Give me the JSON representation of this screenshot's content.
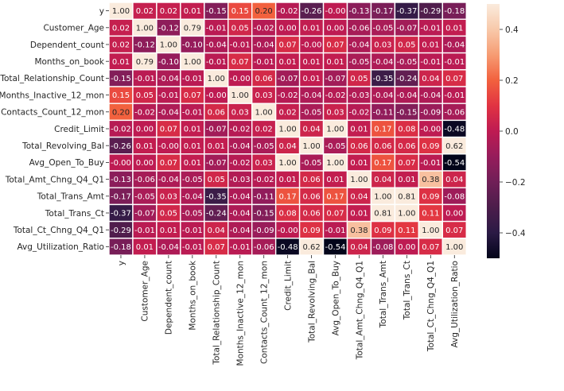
{
  "chart_data": {
    "type": "heatmap",
    "title": "",
    "xlabel": "",
    "ylabel": "",
    "rows": [
      "y",
      "Customer_Age",
      "Dependent_count",
      "Months_on_book",
      "Total_Relationship_Count",
      "Months_Inactive_12_mon",
      "Contacts_Count_12_mon",
      "Credit_Limit",
      "Total_Revolving_Bal",
      "Avg_Open_To_Buy",
      "Total_Amt_Chng_Q4_Q1",
      "Total_Trans_Amt",
      "Total_Trans_Ct",
      "Total_Ct_Chng_Q4_Q1",
      "Avg_Utilization_Ratio"
    ],
    "columns": [
      "y",
      "Customer_Age",
      "Dependent_count",
      "Months_on_book",
      "Total_Relationship_Count",
      "Months_Inactive_12_mon",
      "Contacts_Count_12_mon",
      "Credit_Limit",
      "Total_Revolving_Bal",
      "Avg_Open_To_Buy",
      "Total_Amt_Chng_Q4_Q1",
      "Total_Trans_Amt",
      "Total_Trans_Ct",
      "Total_Ct_Chng_Q4_Q1",
      "Avg_Utilization_Ratio"
    ],
    "values": [
      [
        1.0,
        0.02,
        0.02,
        0.01,
        -0.15,
        0.15,
        0.2,
        -0.02,
        -0.26,
        -0.0,
        -0.13,
        -0.17,
        -0.37,
        -0.29,
        -0.18
      ],
      [
        0.02,
        1.0,
        -0.12,
        0.79,
        -0.01,
        0.05,
        -0.02,
        0.0,
        0.01,
        0.0,
        -0.06,
        -0.05,
        -0.07,
        -0.01,
        0.01
      ],
      [
        0.02,
        -0.12,
        1.0,
        -0.1,
        -0.04,
        -0.01,
        -0.04,
        0.07,
        -0.0,
        0.07,
        -0.04,
        0.03,
        0.05,
        0.01,
        -0.04
      ],
      [
        0.01,
        0.79,
        -0.1,
        1.0,
        -0.01,
        0.07,
        -0.01,
        0.01,
        0.01,
        0.01,
        -0.05,
        -0.04,
        -0.05,
        -0.01,
        -0.01
      ],
      [
        -0.15,
        -0.01,
        -0.04,
        -0.01,
        1.0,
        -0.0,
        0.06,
        -0.07,
        0.01,
        -0.07,
        0.05,
        -0.35,
        -0.24,
        0.04,
        0.07
      ],
      [
        0.15,
        0.05,
        -0.01,
        0.07,
        -0.0,
        1.0,
        0.03,
        -0.02,
        -0.04,
        -0.02,
        -0.03,
        -0.04,
        -0.04,
        -0.04,
        -0.01
      ],
      [
        0.2,
        -0.02,
        -0.04,
        -0.01,
        0.06,
        0.03,
        1.0,
        0.02,
        -0.05,
        0.03,
        -0.02,
        -0.11,
        -0.15,
        -0.09,
        -0.06
      ],
      [
        -0.02,
        0.0,
        0.07,
        0.01,
        -0.07,
        -0.02,
        0.02,
        1.0,
        0.04,
        1.0,
        0.01,
        0.17,
        0.08,
        -0.0,
        -0.48
      ],
      [
        -0.26,
        0.01,
        -0.0,
        0.01,
        0.01,
        -0.04,
        -0.05,
        0.04,
        1.0,
        -0.05,
        0.06,
        0.06,
        0.06,
        0.09,
        0.62
      ],
      [
        -0.0,
        0.0,
        0.07,
        0.01,
        -0.07,
        -0.02,
        0.03,
        1.0,
        -0.05,
        1.0,
        0.01,
        0.17,
        0.07,
        -0.01,
        -0.54
      ],
      [
        -0.13,
        -0.06,
        -0.04,
        -0.05,
        0.05,
        -0.03,
        -0.02,
        0.01,
        0.06,
        0.01,
        1.0,
        0.04,
        0.01,
        0.38,
        0.04
      ],
      [
        -0.17,
        -0.05,
        0.03,
        -0.04,
        -0.35,
        -0.04,
        -0.11,
        0.17,
        0.06,
        0.17,
        0.04,
        1.0,
        0.81,
        0.09,
        -0.08
      ],
      [
        -0.37,
        -0.07,
        0.05,
        -0.05,
        -0.24,
        -0.04,
        -0.15,
        0.08,
        0.06,
        0.07,
        0.01,
        0.81,
        1.0,
        0.11,
        0.0
      ],
      [
        -0.29,
        -0.01,
        0.01,
        -0.01,
        0.04,
        -0.04,
        -0.09,
        -0.0,
        0.09,
        -0.01,
        0.38,
        0.09,
        0.11,
        1.0,
        0.07
      ],
      [
        -0.18,
        0.01,
        -0.04,
        -0.01,
        0.07,
        -0.01,
        -0.06,
        -0.48,
        0.62,
        -0.54,
        0.04,
        -0.08,
        0.0,
        0.07,
        1.0
      ]
    ],
    "vmin": -0.5,
    "vmax": 0.5,
    "annotation_format": "0.00",
    "colormap": "rocket",
    "colormap_stops": [
      "#03051a",
      "#2b1a45",
      "#4c1d4b",
      "#701f57",
      "#961c5b",
      "#be1b52",
      "#e13342",
      "#f2613e",
      "#f69c73",
      "#f8c9aa",
      "#faebdd"
    ],
    "colorbar_ticks": [
      0.4,
      0.2,
      0.0,
      -0.2,
      -0.4
    ],
    "colorbar_tick_labels": [
      "0.4",
      "0.2",
      "0.0",
      "−0.2",
      "−0.4"
    ],
    "grid": false,
    "legend": "colorbar-right",
    "colors": {
      "cell_border": "#ffffff",
      "text_light": "#ffffff",
      "text_dark": "#262626",
      "background": "#ffffff"
    }
  }
}
